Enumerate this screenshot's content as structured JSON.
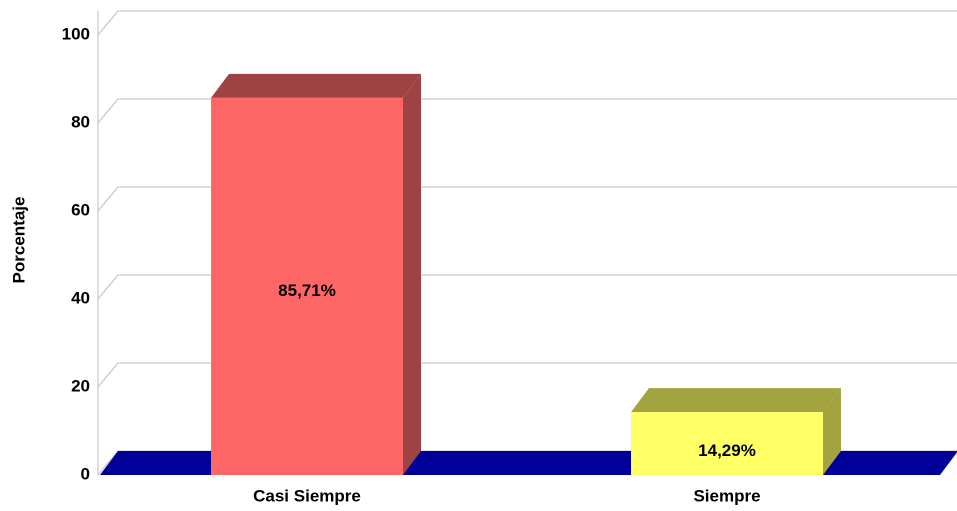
{
  "chart_data": {
    "type": "bar3d",
    "y_label": "Porcentaje",
    "categories": [
      "Casi Siempre",
      "Siempre"
    ],
    "values": [
      85.71,
      14.29
    ],
    "value_labels": [
      "85,71%",
      "14,29%"
    ],
    "colors": [
      "#ff6666",
      "#ffff66"
    ],
    "side_colors": [
      "#9e4343",
      "#a3a33f"
    ],
    "floor_color": "#000099",
    "ylim": [
      0,
      100
    ],
    "yticks": [
      0,
      20,
      40,
      60,
      80,
      100
    ],
    "grid": true
  }
}
